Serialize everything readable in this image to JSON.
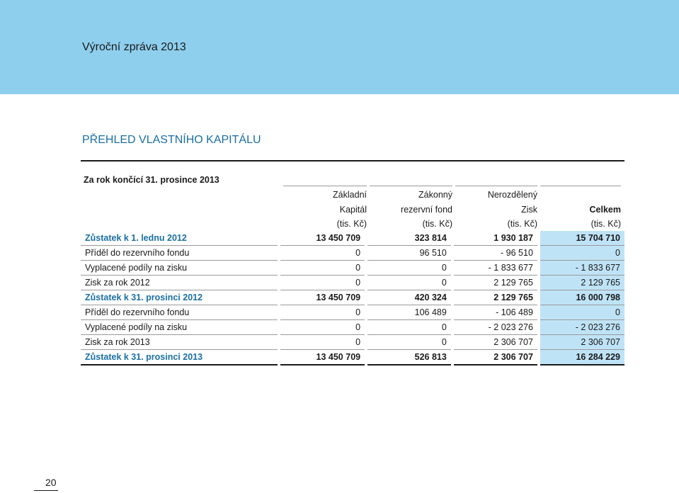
{
  "report_title": "Výroční zpráva 2013",
  "section_title": "PŘEHLED VLASTNÍHO KAPITÁLU",
  "period": "Za rok končící 31. prosince 2013",
  "columns": [
    {
      "lines": [
        "Základní",
        "Kapitál",
        "(tis. Kč)"
      ]
    },
    {
      "lines": [
        "Zákonný",
        "rezervní fond",
        "(tis. Kč)"
      ]
    },
    {
      "lines": [
        "Nerozdělený",
        "Zisk",
        "(tis. Kč)"
      ]
    },
    {
      "lines": [
        "",
        "Celkem",
        "(tis. Kč)"
      ]
    }
  ],
  "rows": [
    {
      "label": "Zůstatek k 1. lednu 2012",
      "values": [
        "13 450 709",
        "323 814",
        "1 930 187",
        "15 704 710"
      ],
      "balance": true
    },
    {
      "label": "Příděl do rezervního fondu",
      "values": [
        "0",
        "96 510",
        "- 96 510",
        "0"
      ],
      "balance": false
    },
    {
      "label": "Vyplacené podíly na zisku",
      "values": [
        "0",
        "0",
        "- 1 833 677",
        "- 1 833 677"
      ],
      "balance": false
    },
    {
      "label": "Zisk za rok 2012",
      "values": [
        "0",
        "0",
        "2 129 765",
        "2 129 765"
      ],
      "balance": false
    },
    {
      "label": "Zůstatek k 31. prosinci 2012",
      "values": [
        "13 450 709",
        "420 324",
        "2 129 765",
        "16 000 798"
      ],
      "balance": true
    },
    {
      "label": "Příděl do rezervního fondu",
      "values": [
        "0",
        "106 489",
        "- 106 489",
        "0"
      ],
      "balance": false
    },
    {
      "label": "Vyplacené podíly na zisku",
      "values": [
        "0",
        "0",
        "- 2 023 276",
        "- 2 023 276"
      ],
      "balance": false
    },
    {
      "label": "Zisk za rok 2013",
      "values": [
        "0",
        "0",
        "2 306 707",
        "2 306 707"
      ],
      "balance": false
    },
    {
      "label": "Zůstatek k 31. prosinci 2013",
      "values": [
        "13 450 709",
        "526 813",
        "2 306 707",
        "16 284 229"
      ],
      "balance": true
    }
  ],
  "page_number": "20",
  "colors": {
    "header_band": "#8ecfee",
    "accent": "#1a6fa5",
    "total_column": "#bfe3f6"
  }
}
